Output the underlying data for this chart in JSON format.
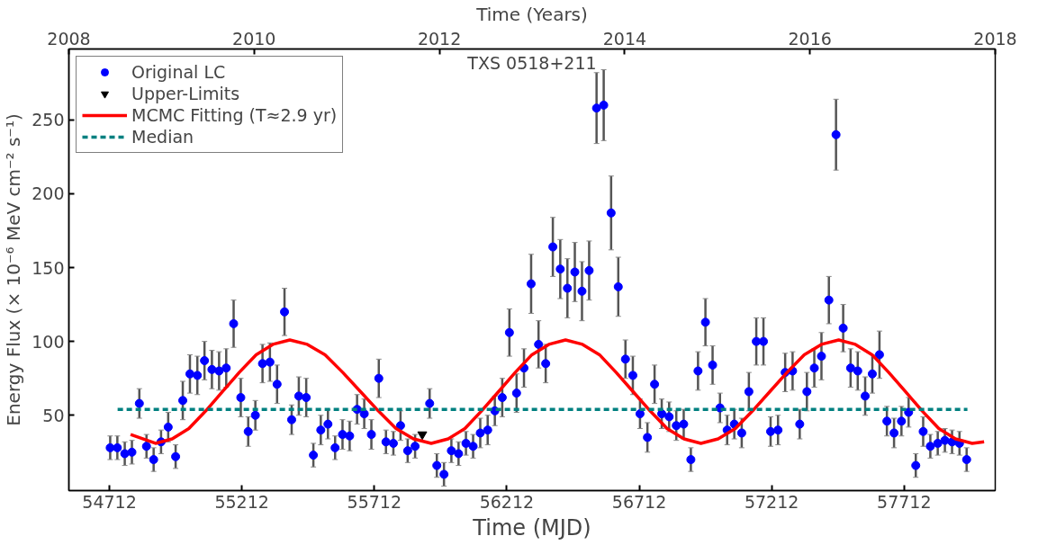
{
  "chart_data": {
    "type": "scatter",
    "title": "TXS 0518+211",
    "xlabel": "Time (MJD)",
    "ylabel": "Energy Flux (× 10⁻⁶ MeV cm⁻² s⁻¹)",
    "x2label": "Time (Years)",
    "xlim": [
      54559,
      58056
    ],
    "xticks": [
      54712,
      55212,
      55712,
      56212,
      56712,
      57212,
      57712
    ],
    "x2lim": [
      2008,
      2018
    ],
    "x2ticks": [
      2008,
      2010,
      2012,
      2014,
      2016,
      2018
    ],
    "ylim": [
      -1,
      298
    ],
    "yticks": [
      50,
      100,
      150,
      200,
      250
    ],
    "grid": false,
    "legend": "top left",
    "series": [
      {
        "name": "Original LC",
        "color": "#0000ff",
        "marker": "circle",
        "x": [
          54715,
          54742,
          54770,
          54797,
          54825,
          54852,
          54879,
          54907,
          54934,
          54962,
          54989,
          55016,
          55044,
          55071,
          55099,
          55126,
          55153,
          55181,
          55208,
          55236,
          55263,
          55290,
          55318,
          55345,
          55373,
          55400,
          55427,
          55455,
          55482,
          55510,
          55537,
          55564,
          55592,
          55619,
          55647,
          55674,
          55701,
          55729,
          55756,
          55784,
          55811,
          55838,
          55866,
          55893,
          55921,
          55948,
          55975,
          56003,
          56030,
          56058,
          56085,
          56112,
          56140,
          56167,
          56195,
          56222,
          56249,
          56277,
          56304,
          56332,
          56359,
          56386,
          56414,
          56441,
          56469,
          56496,
          56523,
          56551,
          56578,
          56606,
          56633,
          56660,
          56688,
          56715,
          56743,
          56770,
          56797,
          56825,
          56852,
          56880,
          56907,
          56934,
          56962,
          56989,
          57017,
          57044,
          57071,
          57099,
          57126,
          57154,
          57181,
          57208,
          57236,
          57263,
          57291,
          57318,
          57345,
          57373,
          57400,
          57428,
          57455,
          57482,
          57510,
          57537,
          57565,
          57592,
          57619,
          57647,
          57674,
          57702,
          57729,
          57756,
          57784,
          57811,
          57839,
          57866,
          57893,
          57921,
          57948
        ],
        "values": [
          28,
          28,
          24,
          25,
          58,
          29,
          20,
          32,
          42,
          22,
          60,
          78,
          77,
          87,
          81,
          80,
          82,
          112,
          62,
          39,
          50,
          85,
          86,
          71,
          120,
          47,
          63,
          62,
          23,
          40,
          44,
          28,
          37,
          36,
          54,
          51,
          37,
          75,
          32,
          31,
          43,
          26,
          29,
          null,
          58,
          16,
          10,
          26,
          24,
          31,
          29,
          38,
          40,
          53,
          62,
          106,
          65,
          82,
          139,
          98,
          85,
          164,
          149,
          136,
          147,
          134,
          148,
          258,
          260,
          187,
          137,
          88,
          77,
          51,
          35,
          71,
          51,
          49,
          43,
          44,
          20,
          80,
          113,
          84,
          55,
          40,
          44,
          38,
          66,
          100,
          100,
          39,
          40,
          79,
          80,
          44,
          66,
          82,
          90,
          128,
          240,
          109,
          82,
          80,
          63,
          78,
          91,
          46,
          38,
          46,
          52,
          16,
          39,
          29,
          31,
          33,
          32,
          31,
          20
        ],
        "errors": [
          8,
          8,
          8,
          8,
          10,
          8,
          8,
          8,
          10,
          8,
          13,
          13,
          13,
          13,
          13,
          13,
          13,
          16,
          13,
          10,
          10,
          13,
          13,
          13,
          16,
          10,
          13,
          13,
          8,
          10,
          10,
          8,
          10,
          10,
          10,
          10,
          10,
          13,
          8,
          8,
          10,
          8,
          8,
          null,
          10,
          8,
          8,
          8,
          8,
          8,
          8,
          10,
          10,
          10,
          13,
          16,
          13,
          13,
          20,
          16,
          13,
          20,
          20,
          20,
          20,
          20,
          20,
          24,
          24,
          25,
          20,
          13,
          13,
          10,
          10,
          13,
          10,
          10,
          10,
          10,
          8,
          13,
          16,
          13,
          10,
          10,
          10,
          10,
          13,
          16,
          16,
          10,
          10,
          13,
          13,
          10,
          13,
          13,
          16,
          16,
          24,
          16,
          13,
          13,
          13,
          13,
          16,
          10,
          10,
          10,
          10,
          8,
          10,
          8,
          8,
          8,
          8,
          8,
          8
        ]
      },
      {
        "name": "Upper-Limits",
        "color": "#000000",
        "marker": "triangle",
        "x": [
          55893
        ],
        "values": [
          37
        ]
      },
      {
        "name": "MCMC Fitting (T≈2.9 yr)",
        "type": "line",
        "color": "#ff0000",
        "line_style": "solid",
        "x": [
          54792,
          54886,
          54949,
          55012,
          55076,
          55139,
          55202,
          55266,
          55329,
          55393,
          55459,
          55526,
          55593,
          55660,
          55727,
          55794,
          55860,
          55927,
          55991,
          56054,
          56117,
          56181,
          56244,
          56307,
          56371,
          56434,
          56498,
          56562,
          56625,
          56689,
          56753,
          56817,
          56881,
          56945,
          57010,
          57075,
          57140,
          57205,
          57270,
          57335,
          57400,
          57465,
          57528,
          57591,
          57654,
          57717,
          57780,
          57843,
          57906,
          57969,
          58014
        ],
        "values": [
          37,
          31,
          34,
          41,
          53,
          66,
          79,
          91,
          98,
          101,
          98,
          91,
          79,
          66,
          53,
          41,
          34,
          31,
          34,
          41,
          53,
          66,
          79,
          91,
          98,
          101,
          98,
          91,
          79,
          66,
          53,
          41,
          34,
          31,
          34,
          41,
          53,
          66,
          79,
          91,
          98,
          101,
          98,
          91,
          79,
          66,
          53,
          41,
          34,
          31,
          32
        ]
      },
      {
        "name": "Median",
        "type": "line",
        "color": "#008080",
        "line_style": "dashed",
        "x": [
          54743,
          57951
        ],
        "values": [
          54,
          54
        ]
      }
    ]
  }
}
